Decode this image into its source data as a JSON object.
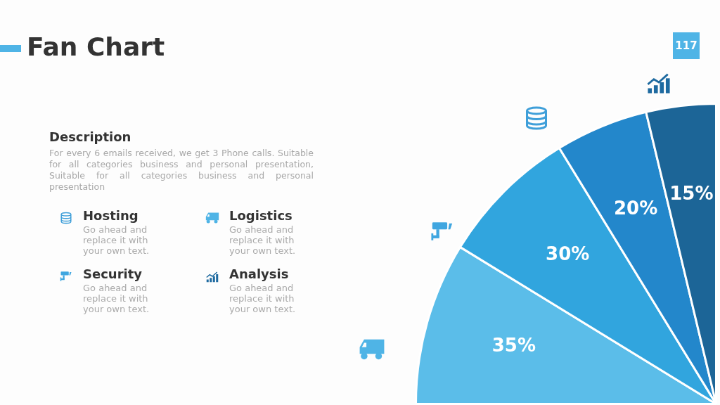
{
  "chart_data": {
    "type": "pie",
    "title": "Fan Chart",
    "categories": [
      null,
      null,
      null,
      null
    ],
    "values": [
      35,
      30,
      20,
      15
    ],
    "colors": [
      "#5bbde9",
      "#31a5de",
      "#2387cb",
      "#1c6597"
    ],
    "value_labels": [
      "35%",
      "30%",
      "20%",
      "15%"
    ],
    "annotations": [
      "117",
      "Description",
      "For every 6 emails received, we get 3 Phone calls. Suitable for all categories business and personal presentation, Suitable for all categories business and personal presentation",
      "Hosting",
      "Go ahead and replace it with your own text.",
      "Logistics",
      "Go ahead and replace it with your own text.",
      "Security",
      "Go ahead and replace it with your own text.",
      "Analysis",
      "Go ahead and replace it with your own text."
    ]
  }
}
